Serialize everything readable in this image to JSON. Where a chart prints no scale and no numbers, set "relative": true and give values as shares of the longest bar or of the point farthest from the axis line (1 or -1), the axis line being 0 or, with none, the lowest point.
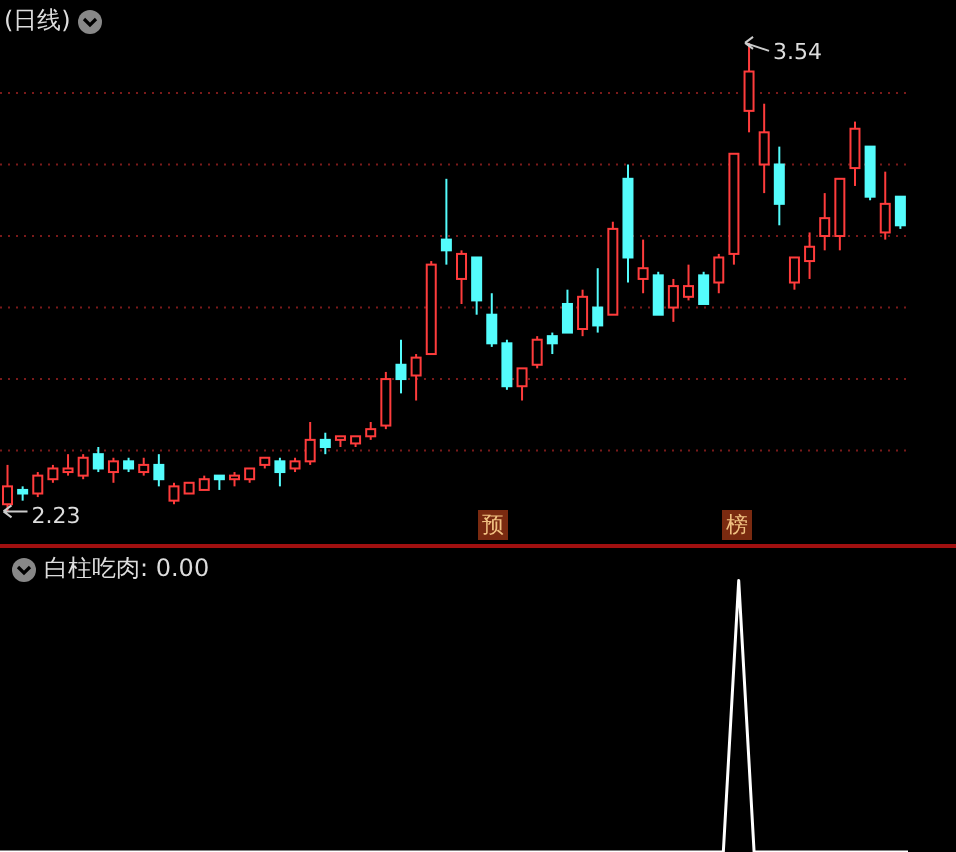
{
  "chart_data": [
    {
      "type": "candlestick",
      "title": "(日线)",
      "categories": [
        null,
        null,
        null,
        null,
        null,
        null,
        null,
        null,
        null,
        null,
        null,
        null,
        null,
        null,
        null,
        null,
        null,
        null,
        null,
        null,
        null,
        null,
        null,
        null,
        null,
        null,
        null,
        null,
        null,
        null,
        null,
        null,
        null,
        null,
        null,
        null,
        null,
        null,
        null,
        null,
        null,
        null,
        null,
        null,
        null,
        null,
        null,
        null,
        null,
        null,
        null,
        null,
        null,
        null,
        null,
        null,
        null,
        null,
        null,
        null
      ],
      "ohlc": [
        [
          2.25,
          2.36,
          2.23,
          2.3
        ],
        [
          2.29,
          2.3,
          2.26,
          2.28
        ],
        [
          2.28,
          2.34,
          2.27,
          2.33
        ],
        [
          2.32,
          2.36,
          2.31,
          2.35
        ],
        [
          2.34,
          2.39,
          2.33,
          2.35
        ],
        [
          2.33,
          2.39,
          2.32,
          2.38
        ],
        [
          2.39,
          2.41,
          2.34,
          2.35
        ],
        [
          2.34,
          2.38,
          2.31,
          2.37
        ],
        [
          2.37,
          2.38,
          2.34,
          2.35
        ],
        [
          2.34,
          2.38,
          2.33,
          2.36
        ],
        [
          2.36,
          2.39,
          2.3,
          2.32
        ],
        [
          2.26,
          2.31,
          2.25,
          2.3
        ],
        [
          2.28,
          2.31,
          2.28,
          2.31
        ],
        [
          2.29,
          2.33,
          2.29,
          2.32
        ],
        [
          2.33,
          2.33,
          2.29,
          2.32
        ],
        [
          2.32,
          2.34,
          2.3,
          2.33
        ],
        [
          2.32,
          2.35,
          2.31,
          2.35
        ],
        [
          2.36,
          2.38,
          2.35,
          2.38
        ],
        [
          2.37,
          2.38,
          2.3,
          2.34
        ],
        [
          2.35,
          2.38,
          2.34,
          2.37
        ],
        [
          2.37,
          2.48,
          2.36,
          2.43
        ],
        [
          2.43,
          2.45,
          2.39,
          2.41
        ],
        [
          2.43,
          2.44,
          2.41,
          2.44
        ],
        [
          2.42,
          2.44,
          2.41,
          2.44
        ],
        [
          2.44,
          2.48,
          2.43,
          2.46
        ],
        [
          2.47,
          2.62,
          2.46,
          2.6
        ],
        [
          2.64,
          2.71,
          2.56,
          2.6
        ],
        [
          2.61,
          2.67,
          2.54,
          2.66
        ],
        [
          2.67,
          2.93,
          2.67,
          2.92
        ],
        [
          2.99,
          3.16,
          2.92,
          2.96
        ],
        [
          2.88,
          2.96,
          2.81,
          2.95
        ],
        [
          2.94,
          2.94,
          2.78,
          2.82
        ],
        [
          2.78,
          2.84,
          2.69,
          2.7
        ],
        [
          2.7,
          2.71,
          2.57,
          2.58
        ],
        [
          2.58,
          2.63,
          2.54,
          2.63
        ],
        [
          2.64,
          2.72,
          2.63,
          2.71
        ],
        [
          2.72,
          2.73,
          2.67,
          2.7
        ],
        [
          2.81,
          2.85,
          2.73,
          2.73
        ],
        [
          2.74,
          2.85,
          2.72,
          2.83
        ],
        [
          2.8,
          2.91,
          2.73,
          2.75
        ],
        [
          2.78,
          3.04,
          2.78,
          3.02
        ],
        [
          3.16,
          3.2,
          2.87,
          2.94
        ],
        [
          2.88,
          2.99,
          2.84,
          2.91
        ],
        [
          2.89,
          2.9,
          2.78,
          2.78
        ],
        [
          2.8,
          2.88,
          2.76,
          2.86
        ],
        [
          2.83,
          2.92,
          2.82,
          2.86
        ],
        [
          2.89,
          2.9,
          2.81,
          2.81
        ],
        [
          2.87,
          2.95,
          2.84,
          2.94
        ],
        [
          2.95,
          3.23,
          2.92,
          3.23
        ],
        [
          3.35,
          3.54,
          3.29,
          3.46
        ],
        [
          3.2,
          3.37,
          3.12,
          3.29
        ],
        [
          3.2,
          3.25,
          3.03,
          3.09
        ],
        [
          2.87,
          2.94,
          2.85,
          2.94
        ],
        [
          2.93,
          3.01,
          2.88,
          2.97
        ],
        [
          3.0,
          3.12,
          2.96,
          3.05
        ],
        [
          3.0,
          3.16,
          2.96,
          3.16
        ],
        [
          3.19,
          3.32,
          3.14,
          3.3
        ],
        [
          3.25,
          3.25,
          3.1,
          3.11
        ],
        [
          3.01,
          3.18,
          2.99,
          3.09
        ],
        [
          3.11,
          3.11,
          3.02,
          3.03
        ]
      ],
      "colors": [
        "#ff3c3c",
        "#54fcfc",
        "#ff3c3c",
        "#ff3c3c",
        "#ff3c3c",
        "#ff3c3c",
        "#54fcfc",
        "#ff3c3c",
        "#54fcfc",
        "#ff3c3c",
        "#54fcfc",
        "#ff3c3c",
        "#ff3c3c",
        "#ff3c3c",
        "#54fcfc",
        "#ff3c3c",
        "#ff3c3c",
        "#ff3c3c",
        "#54fcfc",
        "#ff3c3c",
        "#ff3c3c",
        "#54fcfc",
        "#ff3c3c",
        "#ff3c3c",
        "#ff3c3c",
        "#ff3c3c",
        "#54fcfc",
        "#ff3c3c",
        "#ff3c3c",
        "#54fcfc",
        "#ff3c3c",
        "#54fcfc",
        "#54fcfc",
        "#54fcfc",
        "#ff3c3c",
        "#ff3c3c",
        "#54fcfc",
        "#54fcfc",
        "#ff3c3c",
        "#54fcfc",
        "#ff3c3c",
        "#54fcfc",
        "#ff3c3c",
        "#54fcfc",
        "#ff3c3c",
        "#ff3c3c",
        "#54fcfc",
        "#ff3c3c",
        "#ff3c3c",
        "#ff3c3c",
        "#ff3c3c",
        "#54fcfc",
        "#ff3c3c",
        "#ff3c3c",
        "#ff3c3c",
        "#ff3c3c",
        "#ff3c3c",
        "#54fcfc",
        "#ff3c3c",
        "#54fcfc"
      ],
      "yticks": [
        {
          "value": 2.4,
          "label": null
        },
        {
          "value": 2.6,
          "label": null
        },
        {
          "value": 2.8,
          "label": null
        },
        {
          "value": 3.0,
          "label": null
        },
        {
          "value": 3.2,
          "label": null
        },
        {
          "value": 3.4,
          "label": null
        }
      ],
      "grid": "y",
      "annotations": [
        "3.54",
        "2.23",
        "预",
        "榜"
      ]
    },
    {
      "type": "line",
      "title": "白柱吃肉: 0.00",
      "relative": true,
      "categories": [
        null,
        null,
        null,
        null,
        null,
        null,
        null,
        null,
        null,
        null,
        null,
        null,
        null,
        null,
        null,
        null,
        null,
        null,
        null,
        null,
        null,
        null,
        null,
        null,
        null,
        null,
        null,
        null,
        null,
        null,
        null,
        null,
        null,
        null,
        null,
        null,
        null,
        null,
        null,
        null,
        null,
        null,
        null,
        null,
        null,
        null,
        null,
        null,
        null,
        null,
        null,
        null,
        null,
        null,
        null,
        null,
        null,
        null,
        null,
        null
      ],
      "series": [
        {
          "color": "#ffffff",
          "values": [
            0,
            0,
            0,
            0,
            0,
            0,
            0,
            0,
            0,
            0,
            0,
            0,
            0,
            0,
            0,
            0,
            0,
            0,
            0,
            0,
            0,
            0,
            0,
            0,
            0,
            0,
            0,
            0,
            0,
            0,
            0,
            0,
            0,
            0,
            0,
            0,
            0,
            0,
            0,
            0,
            0,
            0,
            0,
            0,
            0,
            0,
            0,
            0,
            1,
            0,
            0,
            0,
            0,
            0,
            0,
            0,
            0,
            0,
            0,
            0
          ]
        }
      ]
    }
  ]
}
